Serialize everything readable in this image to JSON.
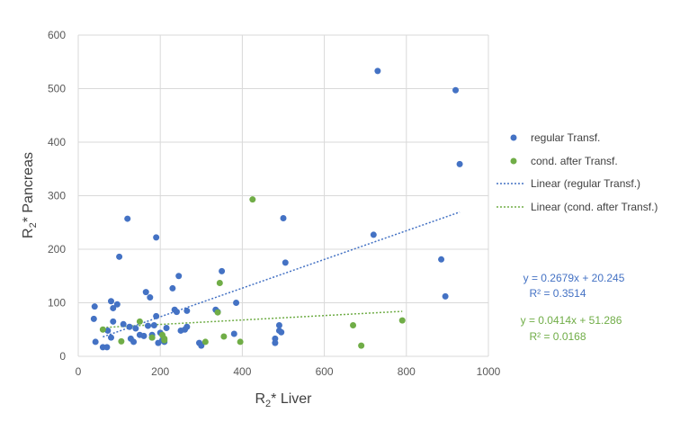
{
  "chart_data": {
    "type": "scatter",
    "xlabel_main": "R",
    "xlabel_sub": "2",
    "xlabel_rest": "* Liver",
    "ylabel_main": "R",
    "ylabel_sub": "2",
    "ylabel_rest": "* Pancreas",
    "xlim": [
      0,
      1000
    ],
    "ylim": [
      0,
      600
    ],
    "xticks": [
      "0",
      "200",
      "400",
      "600",
      "800",
      "1000"
    ],
    "yticks": [
      "0",
      "100",
      "200",
      "300",
      "400",
      "500",
      "600"
    ],
    "grid": true,
    "legend_position": "right",
    "series": [
      {
        "name": "regular Transf.",
        "color": "#4472C4",
        "points": [
          [
            40,
            93
          ],
          [
            38,
            70
          ],
          [
            42,
            27
          ],
          [
            60,
            17
          ],
          [
            70,
            17
          ],
          [
            72,
            48
          ],
          [
            80,
            103
          ],
          [
            85,
            65
          ],
          [
            80,
            35
          ],
          [
            85,
            90
          ],
          [
            95,
            97
          ],
          [
            100,
            186
          ],
          [
            110,
            60
          ],
          [
            120,
            257
          ],
          [
            125,
            55
          ],
          [
            128,
            33
          ],
          [
            135,
            27
          ],
          [
            140,
            52
          ],
          [
            150,
            40
          ],
          [
            160,
            38
          ],
          [
            165,
            120
          ],
          [
            170,
            57
          ],
          [
            175,
            110
          ],
          [
            180,
            40
          ],
          [
            180,
            35
          ],
          [
            185,
            58
          ],
          [
            190,
            75
          ],
          [
            190,
            222
          ],
          [
            195,
            25
          ],
          [
            200,
            44
          ],
          [
            205,
            30
          ],
          [
            210,
            27
          ],
          [
            215,
            53
          ],
          [
            230,
            127
          ],
          [
            235,
            87
          ],
          [
            240,
            83
          ],
          [
            245,
            150
          ],
          [
            250,
            48
          ],
          [
            260,
            50
          ],
          [
            265,
            85
          ],
          [
            265,
            55
          ],
          [
            295,
            25
          ],
          [
            300,
            20
          ],
          [
            335,
            87
          ],
          [
            340,
            83
          ],
          [
            350,
            159
          ],
          [
            380,
            42
          ],
          [
            385,
            100
          ],
          [
            480,
            33
          ],
          [
            480,
            25
          ],
          [
            490,
            58
          ],
          [
            490,
            48
          ],
          [
            495,
            45
          ],
          [
            500,
            258
          ],
          [
            505,
            175
          ],
          [
            720,
            227
          ],
          [
            730,
            533
          ],
          [
            885,
            181
          ],
          [
            895,
            112
          ],
          [
            920,
            497
          ],
          [
            930,
            359
          ]
        ],
        "trend": {
          "label": "Linear (regular Transf.)",
          "slope": 0.2679,
          "intercept": 20.245,
          "x_range": [
            60,
            930
          ]
        },
        "equation": "y = 0.2679x + 20.245",
        "r2": "R² = 0.3514"
      },
      {
        "name": "cond. after Transf.",
        "color": "#70AD47",
        "points": [
          [
            60,
            50
          ],
          [
            105,
            28
          ],
          [
            150,
            65
          ],
          [
            180,
            35
          ],
          [
            205,
            40
          ],
          [
            210,
            33
          ],
          [
            210,
            30
          ],
          [
            310,
            27
          ],
          [
            340,
            82
          ],
          [
            345,
            137
          ],
          [
            355,
            37
          ],
          [
            395,
            27
          ],
          [
            425,
            293
          ],
          [
            670,
            58
          ],
          [
            690,
            20
          ],
          [
            790,
            67
          ]
        ],
        "trend": {
          "label": "Linear (cond. after Transf.)",
          "slope": 0.0414,
          "intercept": 51.286,
          "x_range": [
            60,
            790
          ]
        },
        "equation": "y = 0.0414x + 51.286",
        "r2": "R² = 0.0168"
      }
    ]
  }
}
